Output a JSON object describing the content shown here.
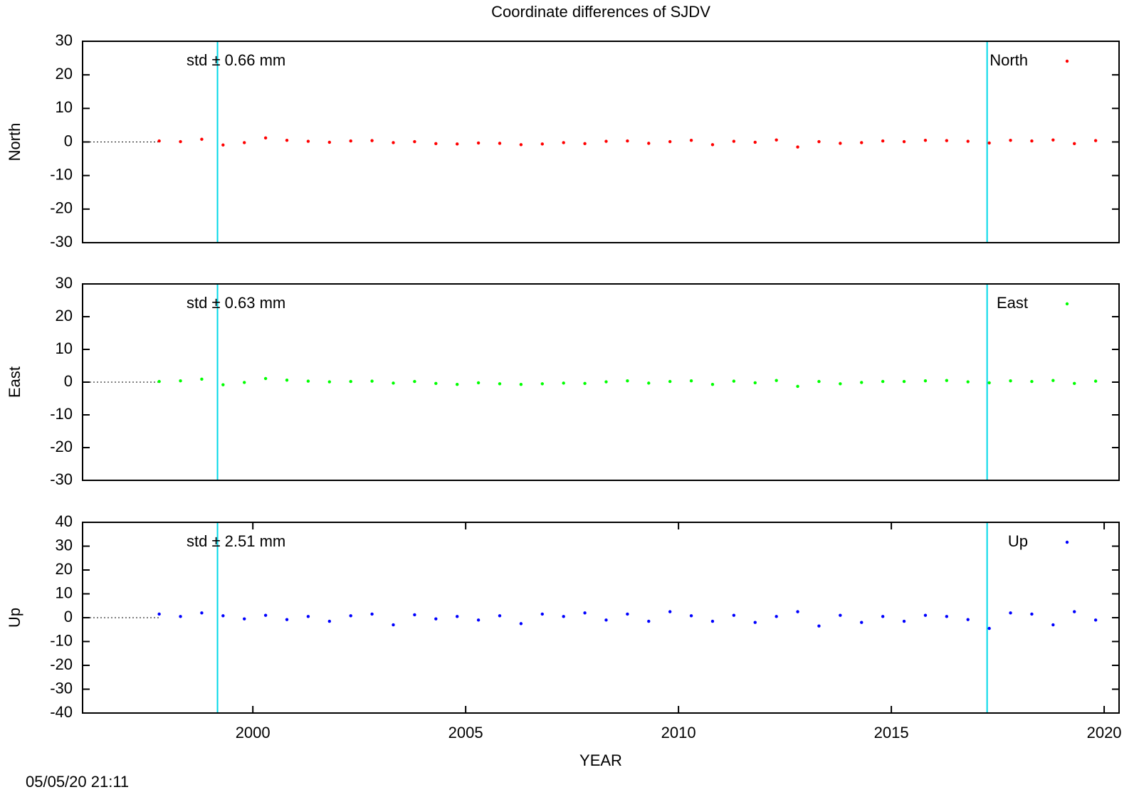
{
  "title": "Coordinate differences of SJDV",
  "timestamp": "05/05/20 21:11",
  "chart_data": [
    {
      "type": "scatter",
      "ylabel": "North",
      "annotation": "std ± 0.66 mm",
      "legend": "upper right",
      "xlim": [
        1996,
        2020.35
      ],
      "ylim": [
        -30,
        30
      ],
      "yticks": [
        -30,
        -20,
        -10,
        0,
        10,
        20,
        30
      ],
      "vlines": [
        1999.17,
        2017.25
      ],
      "vline_color": "#00d8e8",
      "x": [
        1997.8,
        1998.3,
        1998.8,
        1999.3,
        1999.8,
        2000.3,
        2000.8,
        2001.3,
        2001.8,
        2002.3,
        2002.8,
        2003.3,
        2003.8,
        2004.3,
        2004.8,
        2005.3,
        2005.8,
        2006.3,
        2006.8,
        2007.3,
        2007.8,
        2008.3,
        2008.8,
        2009.3,
        2009.8,
        2010.3,
        2010.8,
        2011.3,
        2011.8,
        2012.3,
        2012.8,
        2013.3,
        2013.8,
        2014.3,
        2014.8,
        2015.3,
        2015.8,
        2016.3,
        2016.8,
        2017.3,
        2017.8,
        2018.3,
        2018.8,
        2019.3,
        2019.8
      ],
      "series": [
        {
          "name": "North",
          "color": "#ff0000",
          "values": [
            0.3,
            0.1,
            0.8,
            -0.9,
            -0.2,
            1.2,
            0.5,
            0.2,
            -0.1,
            0.3,
            0.4,
            -0.2,
            0.1,
            -0.5,
            -0.6,
            -0.3,
            -0.4,
            -0.8,
            -0.6,
            -0.2,
            -0.5,
            0.2,
            0.3,
            -0.4,
            0.1,
            0.5,
            -0.8,
            0.2,
            -0.1,
            0.6,
            -1.5,
            0.1,
            -0.4,
            -0.2,
            0.3,
            0.1,
            0.5,
            0.4,
            0.2,
            -0.3,
            0.5,
            0.3,
            0.6,
            -0.5,
            0.4
          ]
        }
      ]
    },
    {
      "type": "scatter",
      "ylabel": "East",
      "annotation": "std ± 0.63 mm",
      "legend": "upper right",
      "xlim": [
        1996,
        2020.35
      ],
      "ylim": [
        -30,
        30
      ],
      "yticks": [
        -30,
        -20,
        -10,
        0,
        10,
        20,
        30
      ],
      "vlines": [
        1999.17,
        2017.25
      ],
      "vline_color": "#00d8e8",
      "x": [
        1997.8,
        1998.3,
        1998.8,
        1999.3,
        1999.8,
        2000.3,
        2000.8,
        2001.3,
        2001.8,
        2002.3,
        2002.8,
        2003.3,
        2003.8,
        2004.3,
        2004.8,
        2005.3,
        2005.8,
        2006.3,
        2006.8,
        2007.3,
        2007.8,
        2008.3,
        2008.8,
        2009.3,
        2009.8,
        2010.3,
        2010.8,
        2011.3,
        2011.8,
        2012.3,
        2012.8,
        2013.3,
        2013.8,
        2014.3,
        2014.8,
        2015.3,
        2015.8,
        2016.3,
        2016.8,
        2017.3,
        2017.8,
        2018.3,
        2018.8,
        2019.3,
        2019.8
      ],
      "series": [
        {
          "name": "East",
          "color": "#00ff00",
          "values": [
            0.2,
            0.4,
            0.9,
            -0.8,
            -0.1,
            1.1,
            0.6,
            0.3,
            0.1,
            0.2,
            0.3,
            -0.3,
            0.2,
            -0.4,
            -0.7,
            -0.2,
            -0.5,
            -0.7,
            -0.5,
            -0.3,
            -0.4,
            0.1,
            0.4,
            -0.3,
            0.2,
            0.4,
            -0.7,
            0.3,
            -0.2,
            0.5,
            -1.3,
            0.2,
            -0.5,
            -0.1,
            0.2,
            0.2,
            0.4,
            0.5,
            0.1,
            -0.2,
            0.4,
            0.2,
            0.5,
            -0.4,
            0.3
          ]
        }
      ]
    },
    {
      "type": "scatter",
      "ylabel": "Up",
      "xlabel": "YEAR",
      "annotation": "std ± 2.51 mm",
      "legend": "upper right",
      "xlim": [
        1996,
        2020.35
      ],
      "xticks": [
        2000,
        2005,
        2010,
        2015,
        2020
      ],
      "ylim": [
        -40,
        40
      ],
      "yticks": [
        -40,
        -30,
        -20,
        -10,
        0,
        10,
        20,
        30,
        40
      ],
      "vlines": [
        1999.17,
        2017.25
      ],
      "vline_color": "#00d8e8",
      "x": [
        1997.8,
        1998.3,
        1998.8,
        1999.3,
        1999.8,
        2000.3,
        2000.8,
        2001.3,
        2001.8,
        2002.3,
        2002.8,
        2003.3,
        2003.8,
        2004.3,
        2004.8,
        2005.3,
        2005.8,
        2006.3,
        2006.8,
        2007.3,
        2007.8,
        2008.3,
        2008.8,
        2009.3,
        2009.8,
        2010.3,
        2010.8,
        2011.3,
        2011.8,
        2012.3,
        2012.8,
        2013.3,
        2013.8,
        2014.3,
        2014.8,
        2015.3,
        2015.8,
        2016.3,
        2016.8,
        2017.3,
        2017.8,
        2018.3,
        2018.8,
        2019.3,
        2019.8
      ],
      "series": [
        {
          "name": "Up",
          "color": "#0000ff",
          "values": [
            1.5,
            0.5,
            2.0,
            0.8,
            -0.5,
            1.0,
            -0.8,
            0.5,
            -1.5,
            0.8,
            1.5,
            -3.0,
            1.2,
            -0.5,
            0.5,
            -1.0,
            0.8,
            -2.5,
            1.5,
            0.5,
            2.0,
            -1.0,
            1.5,
            -1.5,
            2.5,
            0.8,
            -1.5,
            1.0,
            -2.0,
            0.5,
            2.5,
            -3.5,
            1.0,
            -2.0,
            0.5,
            -1.5,
            1.0,
            0.5,
            -0.8,
            -4.5,
            2.0,
            1.5,
            -3.0,
            2.5,
            -1.0
          ]
        }
      ]
    }
  ]
}
